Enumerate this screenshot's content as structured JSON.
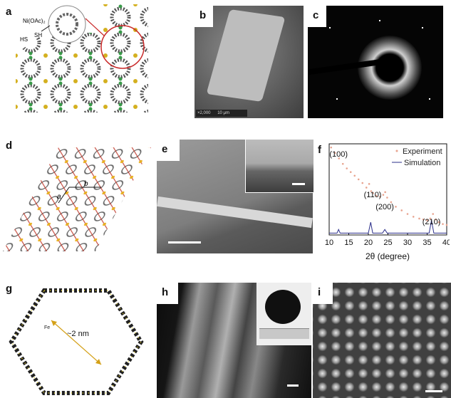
{
  "labels": {
    "a": "a",
    "b": "b",
    "c": "c",
    "d": "d",
    "e": "e",
    "f": "f",
    "g": "g",
    "h": "h",
    "i": "i"
  },
  "panel_a": {
    "reagent": "Ni(OAc)₂",
    "sh": "SH",
    "hs": "HS"
  },
  "panel_b": {
    "info_left": "×2,000",
    "info_right": "10 μm"
  },
  "panel_d": {
    "axis_a": "a",
    "axis_b": "b"
  },
  "panel_g": {
    "pore": "~2 nm",
    "atom": "Fe"
  },
  "colors": {
    "experiment": "#e8a48f",
    "simulation": "#2b2f8a",
    "sulfur": "#e8b020",
    "metal": "#c0392b"
  },
  "chart_data": {
    "type": "line",
    "xlabel": "2θ (degree)",
    "xlim": [
      10,
      40
    ],
    "xticks": [
      10,
      15,
      20,
      25,
      30,
      35,
      40
    ],
    "legend": [
      {
        "name": "Experiment"
      },
      {
        "name": "Simulation"
      }
    ],
    "legend_position": "top-right",
    "series": [
      {
        "name": "Experiment",
        "x": [
          10.5,
          11.5,
          12.5,
          13.5,
          14.5,
          15.5,
          16.5,
          17.5,
          18.5,
          19.5,
          20.2,
          20.7,
          21.2,
          22,
          23,
          23.8,
          24.3,
          24.8,
          25.8,
          27,
          28.5,
          30,
          31.5,
          33,
          34,
          35,
          35.8,
          36.5,
          37.2,
          38,
          39,
          40
        ],
        "y": [
          0.96,
          0.9,
          0.84,
          0.78,
          0.73,
          0.69,
          0.65,
          0.61,
          0.57,
          0.52,
          0.56,
          0.48,
          0.46,
          0.43,
          0.42,
          0.44,
          0.47,
          0.41,
          0.36,
          0.31,
          0.27,
          0.23,
          0.2,
          0.18,
          0.17,
          0.16,
          0.18,
          0.23,
          0.17,
          0.14,
          0.12,
          0.11
        ]
      },
      {
        "name": "Simulation",
        "x": [
          10,
          12,
          12.4,
          12.8,
          13.5,
          20,
          20.6,
          21.1,
          21.6,
          22,
          23.6,
          24.2,
          24.8,
          25.5,
          35.5,
          36.1,
          36.7,
          37.3,
          38,
          40
        ],
        "y": [
          0.02,
          0.02,
          0.06,
          0.02,
          0.02,
          0.02,
          0.14,
          0.02,
          0.02,
          0.02,
          0.02,
          0.06,
          0.02,
          0.02,
          0.02,
          0.16,
          0.02,
          0.02,
          0.02,
          0.02
        ]
      }
    ],
    "annotations": [
      {
        "text": "(100)",
        "x": 12.4
      },
      {
        "text": "(110)",
        "x": 21.1
      },
      {
        "text": "(200)",
        "x": 24.2
      },
      {
        "text": "(210)",
        "x": 36.1
      }
    ]
  }
}
